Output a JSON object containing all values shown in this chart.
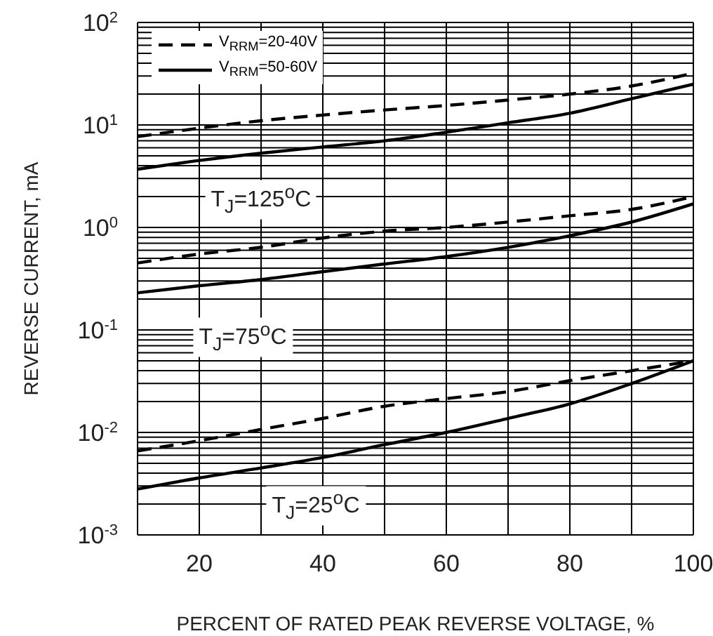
{
  "chart_data": {
    "type": "line",
    "xlabel": "PERCENT OF RATED PEAK REVERSE VOLTAGE, %",
    "ylabel": "REVERSE CURRENT, mA",
    "x": [
      10,
      20,
      30,
      40,
      50,
      60,
      70,
      80,
      90,
      100
    ],
    "series": [
      {
        "name": "V$_{RRM}$=20-40V",
        "color": "#000000",
        "line_style": "dashed",
        "values": [
          7.7,
          9.3,
          11,
          12.5,
          14,
          15.5,
          17.5,
          20,
          24,
          32
        ]
      },
      {
        "name": "V$_{RRM}$=50-60V",
        "color": "#000000",
        "line_style": "solid",
        "values": [
          3.7,
          4.5,
          5.3,
          6.1,
          7,
          8.5,
          10.5,
          13,
          18,
          25
        ]
      },
      {
        "color": "#000000",
        "line_style": "dashed",
        "values": [
          0.45,
          0.55,
          0.64,
          0.79,
          0.92,
          1.0,
          1.13,
          1.3,
          1.5,
          2.0
        ]
      },
      {
        "color": "#000000",
        "line_style": "solid",
        "values": [
          0.23,
          0.27,
          0.31,
          0.37,
          0.44,
          0.52,
          0.64,
          0.83,
          1.13,
          1.7
        ]
      },
      {
        "color": "#000000",
        "line_style": "dashed",
        "values": [
          0.0066,
          0.0083,
          0.0107,
          0.0137,
          0.018,
          0.0214,
          0.025,
          0.032,
          0.04,
          0.05
        ]
      },
      {
        "color": "#000000",
        "line_style": "solid",
        "values": [
          0.0028,
          0.0036,
          0.0045,
          0.0057,
          0.0076,
          0.01,
          0.0137,
          0.019,
          0.03,
          0.05
        ]
      }
    ],
    "annotations": [
      "T$_{J}$=125$^{o}$C",
      "T$_{J}$=75$^{o}$C",
      "T$_{J}$=25$^{o}$C"
    ],
    "xlim": [
      10,
      100
    ],
    "xticks": [
      20,
      {
        "value": 30,
        "label": null
      },
      40,
      {
        "value": 50,
        "label": null
      },
      60,
      {
        "value": 70,
        "label": null
      },
      80,
      {
        "value": 90,
        "label": null
      },
      100
    ],
    "ylim": [
      0.001,
      100
    ],
    "yticks": [
      {
        "value": 0.001,
        "label": "10$^{-3}$"
      },
      {
        "value": 0.002,
        "label": null
      },
      {
        "value": 0.003,
        "label": null
      },
      {
        "value": 0.004,
        "label": null
      },
      {
        "value": 0.005,
        "label": null
      },
      {
        "value": 0.006,
        "label": null
      },
      {
        "value": 0.007,
        "label": null
      },
      {
        "value": 0.008,
        "label": null
      },
      {
        "value": 0.009,
        "label": null
      },
      {
        "value": 0.01,
        "label": "10$^{-2}$"
      },
      {
        "value": 0.02,
        "label": null
      },
      {
        "value": 0.03,
        "label": null
      },
      {
        "value": 0.04,
        "label": null
      },
      {
        "value": 0.05,
        "label": null
      },
      {
        "value": 0.06,
        "label": null
      },
      {
        "value": 0.07,
        "label": null
      },
      {
        "value": 0.08,
        "label": null
      },
      {
        "value": 0.09,
        "label": null
      },
      {
        "value": 0.1,
        "label": "10$^{-1}$"
      },
      {
        "value": 0.2,
        "label": null
      },
      {
        "value": 0.3,
        "label": null
      },
      {
        "value": 0.4,
        "label": null
      },
      {
        "value": 0.5,
        "label": null
      },
      {
        "value": 0.6,
        "label": null
      },
      {
        "value": 0.7,
        "label": null
      },
      {
        "value": 0.8,
        "label": null
      },
      {
        "value": 0.9,
        "label": null
      },
      {
        "value": 1,
        "label": "10$^{0}$"
      },
      {
        "value": 2,
        "label": null
      },
      {
        "value": 3,
        "label": null
      },
      {
        "value": 4,
        "label": null
      },
      {
        "value": 5,
        "label": null
      },
      {
        "value": 6,
        "label": null
      },
      {
        "value": 7,
        "label": null
      },
      {
        "value": 8,
        "label": null
      },
      {
        "value": 9,
        "label": null
      },
      {
        "value": 10,
        "label": "10$^{1}$"
      },
      {
        "value": 20,
        "label": null
      },
      {
        "value": 30,
        "label": null
      },
      {
        "value": 40,
        "label": null
      },
      {
        "value": 50,
        "label": null
      },
      {
        "value": 60,
        "label": null
      },
      {
        "value": 70,
        "label": null
      },
      {
        "value": 80,
        "label": null
      },
      {
        "value": 90,
        "label": null
      },
      {
        "value": 100,
        "label": "10$^{2}$"
      }
    ],
    "log": "y",
    "grid": true,
    "legend": "top left",
    "marker": "none"
  }
}
